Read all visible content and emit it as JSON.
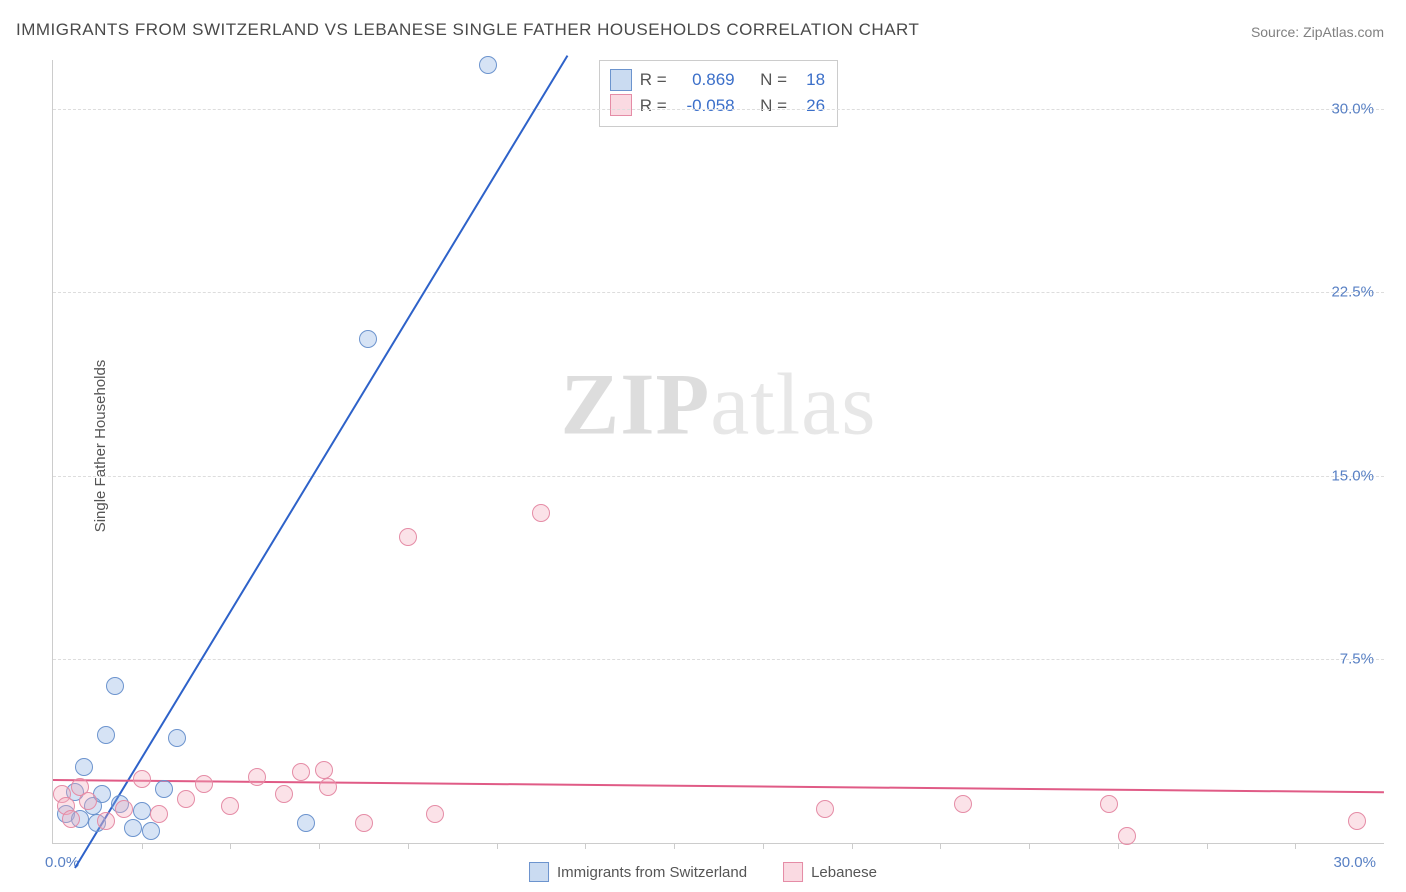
{
  "title": "IMMIGRANTS FROM SWITZERLAND VS LEBANESE SINGLE FATHER HOUSEHOLDS CORRELATION CHART",
  "source": "Source: ZipAtlas.com",
  "y_axis_label": "Single Father Households",
  "watermark_a": "ZIP",
  "watermark_b": "atlas",
  "chart": {
    "type": "scatter",
    "background_color": "#ffffff",
    "grid_color": "#dddddd",
    "axis_color": "#cccccc",
    "xlim": [
      0,
      30
    ],
    "ylim": [
      0,
      32
    ],
    "x_tick_label_left": "0.0%",
    "x_tick_label_right": "30.0%",
    "x_minor_ticks": [
      2,
      4,
      6,
      8,
      10,
      12,
      14,
      16,
      18,
      20,
      22,
      24,
      26,
      28
    ],
    "y_ticks": [
      7.5,
      15.0,
      22.5,
      30.0
    ],
    "y_tick_labels": [
      "7.5%",
      "15.0%",
      "22.5%",
      "30.0%"
    ],
    "y_tick_color": "#5880c4",
    "marker_size": 18,
    "series": [
      {
        "name": "Immigrants from Switzerland",
        "fill_color": "rgba(137,175,225,0.35)",
        "stroke_color": "#6c94ce",
        "r_label": "R =",
        "r_value": "0.869",
        "n_label": "N =",
        "n_value": "18",
        "trend": {
          "color": "#2e62c9",
          "x1": 0.5,
          "y1": -1.0,
          "x2": 11.6,
          "y2": 32.2
        },
        "points": [
          {
            "x": 0.3,
            "y": 1.2
          },
          {
            "x": 0.5,
            "y": 2.1
          },
          {
            "x": 0.6,
            "y": 1.0
          },
          {
            "x": 0.7,
            "y": 3.1
          },
          {
            "x": 0.9,
            "y": 1.5
          },
          {
            "x": 1.0,
            "y": 0.8
          },
          {
            "x": 1.1,
            "y": 2.0
          },
          {
            "x": 1.2,
            "y": 4.4
          },
          {
            "x": 1.4,
            "y": 6.4
          },
          {
            "x": 1.5,
            "y": 1.6
          },
          {
            "x": 1.8,
            "y": 0.6
          },
          {
            "x": 2.0,
            "y": 1.3
          },
          {
            "x": 2.2,
            "y": 0.5
          },
          {
            "x": 2.5,
            "y": 2.2
          },
          {
            "x": 2.8,
            "y": 4.3
          },
          {
            "x": 5.7,
            "y": 0.8
          },
          {
            "x": 7.1,
            "y": 20.6
          },
          {
            "x": 9.8,
            "y": 31.8
          }
        ]
      },
      {
        "name": "Lebanese",
        "fill_color": "rgba(243,172,190,0.35)",
        "stroke_color": "#e58ca6",
        "r_label": "R =",
        "r_value": "-0.058",
        "n_label": "N =",
        "n_value": "26",
        "trend": {
          "color": "#e05b86",
          "x1": 0,
          "y1": 2.6,
          "x2": 30,
          "y2": 2.1
        },
        "points": [
          {
            "x": 0.2,
            "y": 2.0
          },
          {
            "x": 0.3,
            "y": 1.5
          },
          {
            "x": 0.4,
            "y": 1.0
          },
          {
            "x": 0.6,
            "y": 2.3
          },
          {
            "x": 0.8,
            "y": 1.7
          },
          {
            "x": 1.2,
            "y": 0.9
          },
          {
            "x": 1.6,
            "y": 1.4
          },
          {
            "x": 2.0,
            "y": 2.6
          },
          {
            "x": 2.4,
            "y": 1.2
          },
          {
            "x": 3.0,
            "y": 1.8
          },
          {
            "x": 3.4,
            "y": 2.4
          },
          {
            "x": 4.0,
            "y": 1.5
          },
          {
            "x": 4.6,
            "y": 2.7
          },
          {
            "x": 5.2,
            "y": 2.0
          },
          {
            "x": 5.6,
            "y": 2.9
          },
          {
            "x": 6.1,
            "y": 3.0
          },
          {
            "x": 6.2,
            "y": 2.3
          },
          {
            "x": 7.0,
            "y": 0.8
          },
          {
            "x": 8.0,
            "y": 12.5
          },
          {
            "x": 8.6,
            "y": 1.2
          },
          {
            "x": 11.0,
            "y": 13.5
          },
          {
            "x": 17.4,
            "y": 1.4
          },
          {
            "x": 20.5,
            "y": 1.6
          },
          {
            "x": 23.8,
            "y": 1.6
          },
          {
            "x": 24.2,
            "y": 0.3
          },
          {
            "x": 29.4,
            "y": 0.9
          }
        ]
      }
    ]
  }
}
